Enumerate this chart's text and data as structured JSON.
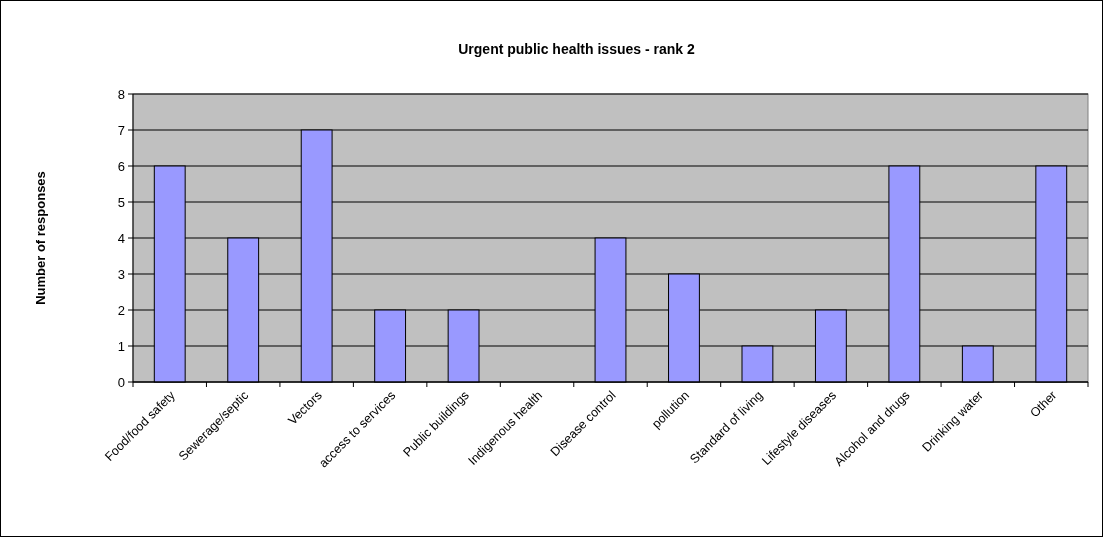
{
  "chart_data": {
    "type": "bar",
    "title": "Urgent public health issues - rank 2",
    "ylabel": "Number of responses",
    "categories": [
      "Food/food safety",
      "Sewerage/septic",
      "Vectors",
      "access to services",
      "Public buildings",
      "Indigenous health",
      "Disease control",
      "pollution",
      "Standard of living",
      "Lifestyle diseases",
      "Alcohol and drugs",
      "Drinking water",
      "Other"
    ],
    "values": [
      6,
      4,
      7,
      2,
      2,
      0,
      4,
      3,
      1,
      2,
      6,
      1,
      6
    ],
    "color": "#9999ff",
    "ylim": [
      0,
      8
    ],
    "yticks": [
      0,
      1,
      2,
      3,
      4,
      5,
      6,
      7,
      8
    ],
    "grid": "y"
  }
}
